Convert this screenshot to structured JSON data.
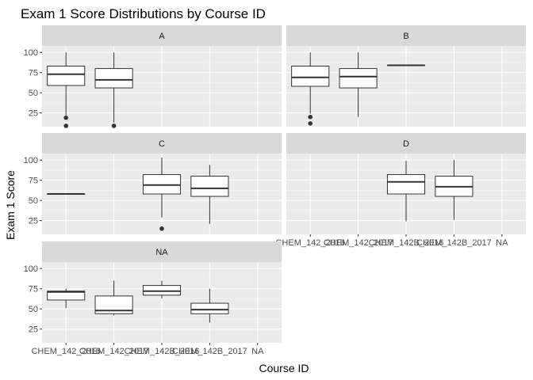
{
  "chart_data": {
    "type": "boxplot",
    "title": "Exam 1 Score Distributions by Course ID",
    "xlabel": "Course ID",
    "ylabel": "Exam 1 Score",
    "categories": [
      "CHEM_142_2016",
      "CHEM_142_2017",
      "CHEM_142B_2016",
      "CHEM_142B_2017",
      "NA"
    ],
    "y_ticks": [
      25,
      50,
      75,
      100
    ],
    "ylim": [
      8,
      108
    ],
    "facet_layout": "2 columns x 3 rows",
    "colors": {
      "panel": "#ebebeb",
      "strip": "#d9d9d9",
      "grid_major": "#ffffff",
      "grid_minor": "#f5f5f5",
      "box_fill": "#ffffff",
      "box_line": "#333333"
    },
    "facets": [
      {
        "label": "A",
        "boxes": [
          {
            "cat": 0,
            "min": 22,
            "q1": 59,
            "median": 73,
            "q3": 83,
            "max": 100,
            "outliers": [
              19,
              9
            ]
          },
          {
            "cat": 1,
            "min": 13,
            "q1": 56,
            "median": 66,
            "q3": 80,
            "max": 100,
            "outliers": [
              9
            ]
          }
        ]
      },
      {
        "label": "B",
        "boxes": [
          {
            "cat": 0,
            "min": 24,
            "q1": 58,
            "median": 69,
            "q3": 83,
            "max": 100,
            "outliers": [
              20,
              12
            ]
          },
          {
            "cat": 1,
            "min": 20,
            "q1": 56,
            "median": 70,
            "q3": 80,
            "max": 100,
            "outliers": []
          },
          {
            "cat": 2,
            "min": 84,
            "q1": 84,
            "median": 84,
            "q3": 84,
            "max": 84,
            "outliers": []
          }
        ]
      },
      {
        "label": "C",
        "boxes": [
          {
            "cat": 0,
            "min": 58,
            "q1": 58,
            "median": 58,
            "q3": 58,
            "max": 58,
            "outliers": []
          },
          {
            "cat": 2,
            "min": 29,
            "q1": 58,
            "median": 69,
            "q3": 82,
            "max": 103,
            "outliers": [
              15
            ]
          },
          {
            "cat": 3,
            "min": 21,
            "q1": 55,
            "median": 65,
            "q3": 80,
            "max": 94,
            "outliers": []
          }
        ]
      },
      {
        "label": "D",
        "boxes": [
          {
            "cat": 2,
            "min": 24,
            "q1": 58,
            "median": 73,
            "q3": 82,
            "max": 99,
            "outliers": []
          },
          {
            "cat": 3,
            "min": 26,
            "q1": 55,
            "median": 67,
            "q3": 80,
            "max": 100,
            "outliers": []
          }
        ]
      },
      {
        "label": "NA",
        "boxes": [
          {
            "cat": 0,
            "min": 51,
            "q1": 61,
            "median": 71,
            "q3": 72,
            "max": 75,
            "outliers": []
          },
          {
            "cat": 1,
            "min": 42,
            "q1": 44,
            "median": 48,
            "q3": 66,
            "max": 85,
            "outliers": []
          },
          {
            "cat": 2,
            "min": 63,
            "q1": 67,
            "median": 72,
            "q3": 79,
            "max": 85,
            "outliers": []
          },
          {
            "cat": 3,
            "min": 33,
            "q1": 44,
            "median": 49,
            "q3": 57,
            "max": 75,
            "outliers": []
          }
        ]
      }
    ]
  }
}
